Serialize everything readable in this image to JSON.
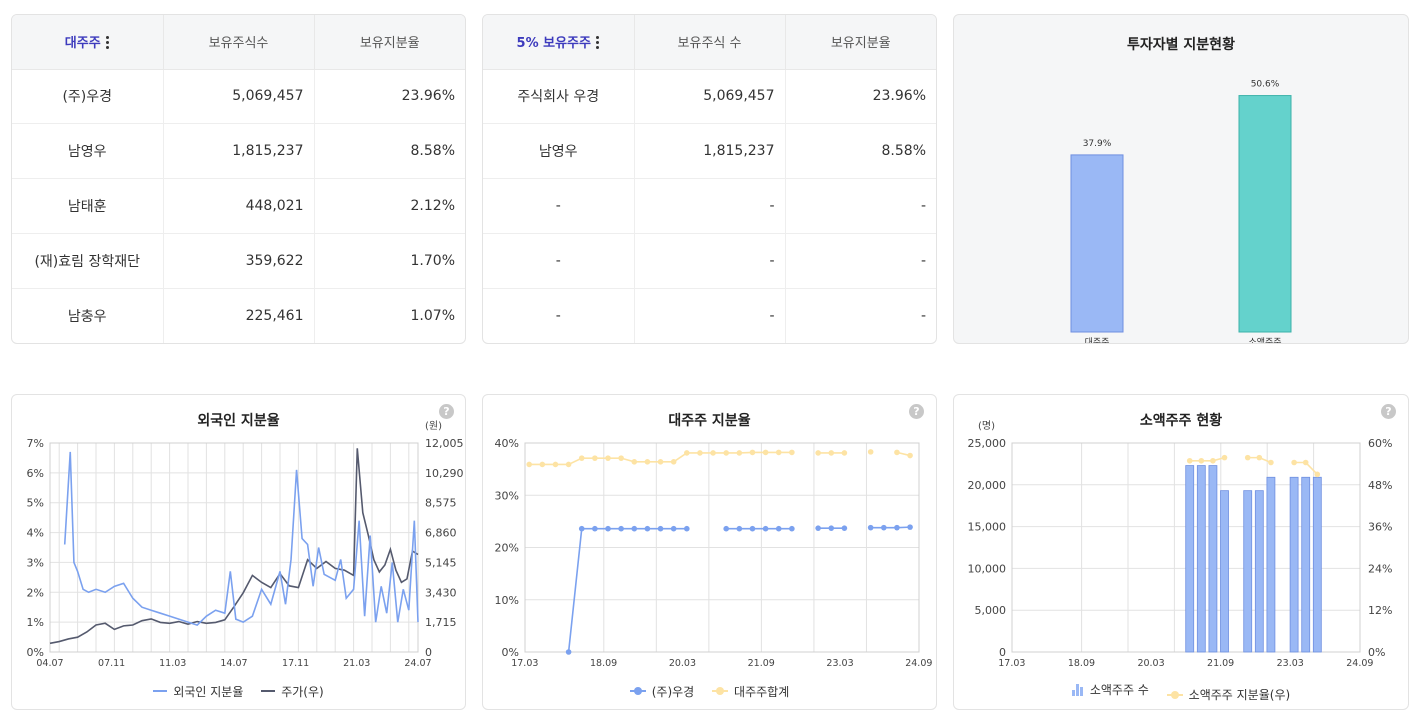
{
  "major_table": {
    "headers": [
      "대주주",
      "보유주식수",
      "보유지분율"
    ],
    "rows": [
      [
        "(주)우경",
        "5,069,457",
        "23.96%"
      ],
      [
        "남영우",
        "1,815,237",
        "8.58%"
      ],
      [
        "남태훈",
        "448,021",
        "2.12%"
      ],
      [
        "(재)효림 장학재단",
        "359,622",
        "1.70%"
      ],
      [
        "남충우",
        "225,461",
        "1.07%"
      ]
    ]
  },
  "five_pct_table": {
    "headers": [
      "5% 보유주주",
      "보유주식 수",
      "보유지분율"
    ],
    "rows": [
      [
        "주식회사 우경",
        "5,069,457",
        "23.96%"
      ],
      [
        "남영우",
        "1,815,237",
        "8.58%"
      ],
      [
        "-",
        "-",
        "-"
      ],
      [
        "-",
        "-",
        "-"
      ],
      [
        "-",
        "-",
        "-"
      ]
    ]
  },
  "investor_share": {
    "title": "투자자별 지분현황",
    "help": "?",
    "chart_data": {
      "type": "bar",
      "categories": [
        "대주주",
        "소액주주"
      ],
      "values": [
        37.9,
        50.6
      ],
      "value_labels": [
        "37.9%",
        "50.6%"
      ],
      "colors": [
        "#9ab8f5",
        "#64d2cc"
      ],
      "ylim": [
        0,
        55
      ]
    }
  },
  "foreign_ratio": {
    "title": "외국인 지분율",
    "help": "?",
    "legend": [
      "외국인 지분율",
      "주가(우)"
    ],
    "colors": {
      "ratio": "#7ba1ef",
      "price": "#555a6e"
    },
    "chart_data": {
      "type": "line",
      "x_ticks": [
        "04.07",
        "07.11",
        "11.03",
        "14.07",
        "17.11",
        "21.03",
        "24.07"
      ],
      "y_left_ticks": [
        "0%",
        "1%",
        "2%",
        "3%",
        "4%",
        "5%",
        "6%",
        "7%"
      ],
      "y_right_unit": "(원)",
      "y_right_ticks": [
        "0",
        "1,715",
        "3,430",
        "5,145",
        "6,860",
        "8,575",
        "10,290",
        "12,005"
      ],
      "ylim_left": [
        0,
        7
      ],
      "ylim_right": [
        0,
        12005
      ],
      "series": [
        {
          "name": "외국인 지분율",
          "axis": "left",
          "x": [
            2004.5,
            2005.3,
            2005.6,
            2005.8,
            2006.0,
            2006.3,
            2006.6,
            2007.0,
            2007.5,
            2008.0,
            2008.5,
            2009.0,
            2009.5,
            2010.0,
            2010.5,
            2011.0,
            2011.5,
            2012.0,
            2012.5,
            2013.0,
            2013.5,
            2014.0,
            2014.3,
            2014.6,
            2015.0,
            2015.5,
            2016.0,
            2016.5,
            2017.0,
            2017.3,
            2017.6,
            2017.9,
            2018.2,
            2018.5,
            2018.8,
            2019.1,
            2019.4,
            2019.7,
            2020.0,
            2020.3,
            2020.6,
            2021.0,
            2021.3,
            2021.6,
            2021.9,
            2022.2,
            2022.5,
            2022.8,
            2023.1,
            2023.4,
            2023.7,
            2024.0,
            2024.3,
            2024.5
          ],
          "y": [
            null,
            3.6,
            6.7,
            3.0,
            2.7,
            2.1,
            2.0,
            2.1,
            2.0,
            2.2,
            2.3,
            1.8,
            1.5,
            1.4,
            1.3,
            1.2,
            1.1,
            1.0,
            0.9,
            1.2,
            1.4,
            1.3,
            2.7,
            1.1,
            1.0,
            1.2,
            2.1,
            1.6,
            2.7,
            1.6,
            3.1,
            6.1,
            3.8,
            3.6,
            2.2,
            3.5,
            2.6,
            2.5,
            2.4,
            3.1,
            1.8,
            2.1,
            4.4,
            1.2,
            3.9,
            1.0,
            2.2,
            1.3,
            3.0,
            1.0,
            2.1,
            1.4,
            4.4,
            1.0
          ]
        },
        {
          "name": "주가(우)",
          "axis": "right",
          "x": [
            2004.5,
            2005.0,
            2005.5,
            2006.0,
            2006.5,
            2007.0,
            2007.5,
            2008.0,
            2008.5,
            2009.0,
            2009.5,
            2010.0,
            2010.5,
            2011.0,
            2011.5,
            2012.0,
            2012.5,
            2013.0,
            2013.5,
            2014.0,
            2014.5,
            2015.0,
            2015.5,
            2016.0,
            2016.5,
            2017.0,
            2017.5,
            2018.0,
            2018.5,
            2019.0,
            2019.5,
            2020.0,
            2020.5,
            2021.0,
            2021.2,
            2021.5,
            2021.8,
            2022.1,
            2022.4,
            2022.7,
            2023.0,
            2023.3,
            2023.6,
            2023.9,
            2024.2,
            2024.5
          ],
          "y": [
            500,
            600,
            750,
            850,
            1150,
            1550,
            1650,
            1300,
            1500,
            1550,
            1800,
            1900,
            1700,
            1650,
            1750,
            1600,
            1750,
            1650,
            1700,
            1850,
            2600,
            3400,
            4400,
            4000,
            3700,
            4500,
            3800,
            3700,
            5300,
            4800,
            5200,
            4800,
            4700,
            4400,
            11700,
            8000,
            6700,
            5300,
            4600,
            5000,
            5900,
            4700,
            4000,
            4200,
            5800,
            5600
          ]
        }
      ]
    }
  },
  "major_ratio": {
    "title": "대주주 지분율",
    "help": "?",
    "legend": [
      "(주)우경",
      "대주주합계"
    ],
    "colors": {
      "woo": "#7ba1ef",
      "total": "#fde3a4"
    },
    "chart_data": {
      "type": "line",
      "x_ticks": [
        "17.03",
        "18.09",
        "20.03",
        "21.09",
        "23.03",
        "24.09"
      ],
      "y_ticks": [
        "0%",
        "10%",
        "20%",
        "30%",
        "40%"
      ],
      "ylim": [
        0,
        40
      ],
      "series": [
        {
          "name": "(주)우경",
          "x": [
            2017.25,
            2018.0,
            2018.25,
            2018.5,
            2018.75,
            2019.0,
            2019.25,
            2019.5,
            2019.75,
            2020.0,
            2020.25,
            2021.0,
            2021.25,
            2021.5,
            2021.75,
            2022.0,
            2022.25,
            2022.75,
            2023.0,
            2023.25,
            2023.75,
            2024.0,
            2024.25,
            2024.5
          ],
          "y": [
            null,
            0,
            23.6,
            23.6,
            23.6,
            23.6,
            23.6,
            23.6,
            23.6,
            23.6,
            23.6,
            23.6,
            23.6,
            23.6,
            23.6,
            23.6,
            23.6,
            23.7,
            23.7,
            23.7,
            23.8,
            23.8,
            23.8,
            23.9
          ]
        },
        {
          "name": "대주주합계",
          "x": [
            2017.25,
            2017.5,
            2017.75,
            2018.0,
            2018.25,
            2018.5,
            2018.75,
            2019.0,
            2019.25,
            2019.5,
            2019.75,
            2020.0,
            2020.25,
            2020.5,
            2020.75,
            2021.0,
            2021.25,
            2021.5,
            2021.75,
            2022.0,
            2022.25,
            2022.75,
            2023.0,
            2023.25,
            2023.75,
            2024.25,
            2024.5
          ],
          "y": [
            35.9,
            35.9,
            35.9,
            35.9,
            37.1,
            37.1,
            37.1,
            37.1,
            36.4,
            36.4,
            36.4,
            36.4,
            38.1,
            38.1,
            38.1,
            38.1,
            38.1,
            38.2,
            38.2,
            38.2,
            38.2,
            38.1,
            38.1,
            38.1,
            38.3,
            38.2,
            37.6
          ]
        }
      ]
    }
  },
  "minor_holders": {
    "title": "소액주주 현황",
    "help": "?",
    "legend": [
      "소액주주 수",
      "소액주주 지분율(우)"
    ],
    "colors": {
      "bar": "#9ab8f5",
      "line": "#fde3a4"
    },
    "chart_data": {
      "type": "bar",
      "x_ticks": [
        "17.03",
        "18.09",
        "20.03",
        "21.09",
        "23.03",
        "24.09"
      ],
      "y_left_unit": "(명)",
      "y_left_ticks": [
        "0",
        "5,000",
        "10,000",
        "15,000",
        "20,000",
        "25,000"
      ],
      "y_right_ticks": [
        "0%",
        "12%",
        "24%",
        "36%",
        "48%",
        "60%"
      ],
      "ylim_left": [
        0,
        25000
      ],
      "ylim_right": [
        0,
        60
      ],
      "series": [
        {
          "name": "소액주주 수",
          "axis": "left",
          "x": [
            2021.0,
            2021.25,
            2021.5,
            2021.75,
            2022.25,
            2022.5,
            2022.75,
            2023.25,
            2023.5,
            2023.75
          ],
          "y": [
            22300,
            22300,
            22300,
            19300,
            19300,
            19300,
            20900,
            20900,
            20900,
            20900
          ]
        },
        {
          "name": "소액주주 지분율(우)",
          "axis": "right",
          "x": [
            2021.0,
            2021.25,
            2021.5,
            2021.75,
            2022.25,
            2022.5,
            2022.75,
            2023.25,
            2023.5,
            2023.75
          ],
          "y": [
            54.9,
            54.9,
            54.9,
            55.8,
            55.8,
            55.8,
            54.4,
            54.4,
            54.4,
            51.0
          ]
        }
      ]
    }
  }
}
